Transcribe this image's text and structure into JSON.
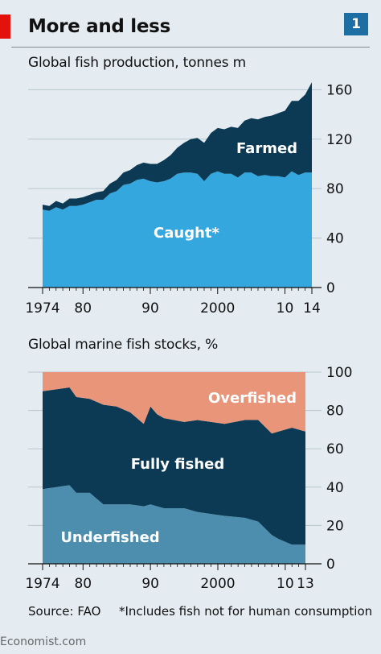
{
  "header": {
    "title": "More and less",
    "badge": "1"
  },
  "footer": {
    "source": "Source: FAO",
    "note": "*Includes fish not for human consumption",
    "brand": "Economist.com"
  },
  "colors": {
    "farmed": "#0c3a54",
    "caught": "#34a7df",
    "overfished": "#e8957a",
    "fully_fished": "#0c3a54",
    "underfished": "#4d8eaf",
    "accent_red": "#e3120b",
    "badge_blue": "#1d6fa3"
  },
  "chart_data": [
    {
      "type": "area",
      "stacked": true,
      "title": "Global fish production, tonnes m",
      "ylim": [
        0,
        170
      ],
      "yticks": [
        0,
        40,
        80,
        120,
        160
      ],
      "xticks": [
        1974,
        1980,
        1990,
        2000,
        2010,
        2014
      ],
      "xtick_labels": [
        "1974",
        "80",
        "90",
        "2000",
        "10",
        "14"
      ],
      "x": [
        1974,
        1975,
        1976,
        1977,
        1978,
        1979,
        1980,
        1981,
        1982,
        1983,
        1984,
        1985,
        1986,
        1987,
        1988,
        1989,
        1990,
        1991,
        1992,
        1993,
        1994,
        1995,
        1996,
        1997,
        1998,
        1999,
        2000,
        2001,
        2002,
        2003,
        2004,
        2005,
        2006,
        2007,
        2008,
        2009,
        2010,
        2011,
        2012,
        2013,
        2014
      ],
      "series": [
        {
          "name": "Caught*",
          "values": [
            63,
            62,
            65,
            63,
            66,
            66,
            67,
            69,
            71,
            71,
            76,
            78,
            83,
            84,
            87,
            88,
            86,
            85,
            86,
            88,
            92,
            93,
            93,
            92,
            86,
            92,
            94,
            92,
            92,
            89,
            93,
            93,
            90,
            91,
            90,
            90,
            89,
            94,
            91,
            93,
            93
          ]
        },
        {
          "name": "Farmed",
          "values": [
            4,
            4,
            5,
            5,
            6,
            6,
            6,
            6,
            6,
            7,
            8,
            9,
            10,
            11,
            12,
            13,
            14,
            15,
            17,
            19,
            21,
            24,
            27,
            29,
            31,
            33,
            35,
            36,
            38,
            40,
            42,
            44,
            46,
            47,
            49,
            51,
            54,
            57,
            60,
            63,
            73
          ]
        }
      ]
    },
    {
      "type": "area",
      "stacked": true,
      "title": "Global marine fish stocks, %",
      "ylim": [
        0,
        100
      ],
      "yticks": [
        0,
        20,
        40,
        60,
        80,
        100
      ],
      "xticks": [
        1974,
        1980,
        1990,
        2000,
        2010,
        2013
      ],
      "xtick_labels": [
        "1974",
        "80",
        "90",
        "2000",
        "10",
        "13"
      ],
      "x": [
        1974,
        1978,
        1979,
        1981,
        1983,
        1985,
        1987,
        1989,
        1990,
        1991,
        1992,
        1995,
        1997,
        1999,
        2001,
        2004,
        2006,
        2008,
        2009,
        2011,
        2013
      ],
      "series": [
        {
          "name": "Underfished",
          "values": [
            39,
            41,
            37,
            37,
            31,
            31,
            31,
            30,
            31,
            30,
            29,
            29,
            27,
            26,
            25,
            24,
            22,
            15,
            13,
            10,
            10
          ]
        },
        {
          "name": "Fully fished",
          "values": [
            51,
            51,
            50,
            49,
            52,
            51,
            48,
            43,
            51,
            48,
            47,
            45,
            48,
            48,
            48,
            51,
            53,
            53,
            56,
            61,
            59
          ]
        },
        {
          "name": "Overfished",
          "values": [
            10,
            8,
            13,
            14,
            17,
            18,
            21,
            27,
            18,
            22,
            24,
            26,
            25,
            26,
            27,
            25,
            25,
            32,
            31,
            29,
            31
          ]
        }
      ]
    }
  ]
}
